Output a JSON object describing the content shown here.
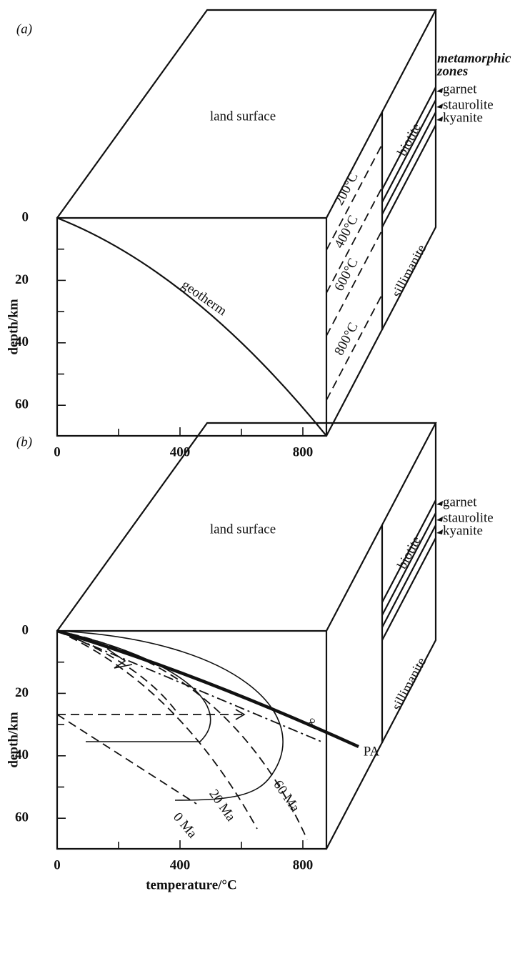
{
  "panels": [
    {
      "label": "(a)",
      "top_label": "land surface",
      "side_title": [
        "metamorphic",
        "zones"
      ],
      "zones": [
        "biotite",
        "garnet",
        "staurolite",
        "kyanite",
        "sillimanite"
      ],
      "isotherms": [
        "200°C",
        "400°C",
        "600°C",
        "800°C"
      ],
      "curve_labels": [
        "geotherm"
      ],
      "y_axis": {
        "title": "depth/km",
        "ticks": [
          0,
          20,
          40,
          60
        ]
      },
      "x_axis": {
        "ticks": [
          0,
          400,
          800
        ]
      }
    },
    {
      "label": "(b)",
      "top_label": "land surface",
      "zones": [
        "biotite",
        "garnet",
        "staurolite",
        "kyanite",
        "sillimanite"
      ],
      "curve_labels": [
        "∞",
        "PA",
        "20 Ma",
        "60 Ma",
        "0 Ma"
      ],
      "y_axis": {
        "title": "depth/km",
        "ticks": [
          0,
          20,
          40,
          60
        ]
      },
      "x_axis": {
        "title": "temperature/°C",
        "ticks": [
          0,
          400,
          800
        ]
      }
    }
  ]
}
